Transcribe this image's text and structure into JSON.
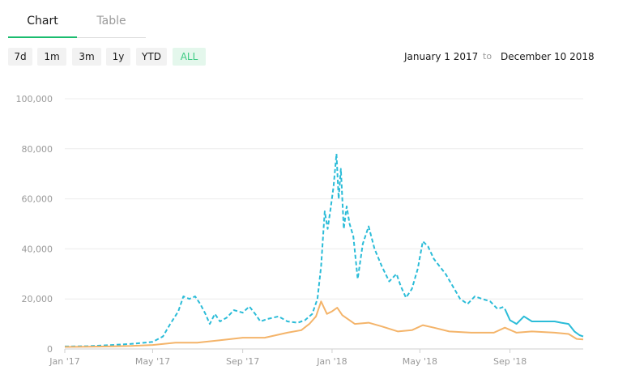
{
  "tabs": [
    {
      "label": "Chart"
    },
    {
      "label": "Table"
    }
  ],
  "range_buttons": [
    "7d",
    "1m",
    "3m",
    "1y",
    "YTD",
    "ALL"
  ],
  "active_range": "ALL",
  "date_range": {
    "start": "January 1 2017",
    "separator": "to",
    "end": "December 10 2018"
  },
  "colors": {
    "series_blue": "#2bbcd8",
    "series_orange": "#f4b46a",
    "tab_active": "#1abc6e",
    "active_button": "#3ecb84"
  },
  "chart_data": {
    "type": "line",
    "title": "",
    "xlabel": "",
    "ylabel": "",
    "ylim": [
      0,
      100000
    ],
    "xlim": [
      "2017-01-01",
      "2018-12-10"
    ],
    "grid": true,
    "yticks": [
      0,
      20000,
      40000,
      60000,
      80000,
      100000
    ],
    "ytick_labels": [
      "0",
      "20,000",
      "40,000",
      "60,000",
      "80,000",
      "100,000"
    ],
    "xticks": [
      {
        "date": "2017-01-01",
        "label": "Jan '17"
      },
      {
        "date": "2017-05-01",
        "label": "May '17"
      },
      {
        "date": "2017-09-01",
        "label": "Sep '17"
      },
      {
        "date": "2018-01-01",
        "label": "Jan '18"
      },
      {
        "date": "2018-05-01",
        "label": "May '18"
      },
      {
        "date": "2018-09-01",
        "label": "Sep '18"
      }
    ],
    "series": [
      {
        "style": "dashed",
        "points": [
          [
            "2017-01-01",
            1000
          ],
          [
            "2017-02-01",
            1100
          ],
          [
            "2017-03-01",
            1500
          ],
          [
            "2017-04-01",
            2000
          ],
          [
            "2017-05-01",
            2800
          ],
          [
            "2017-05-15",
            5000
          ],
          [
            "2017-05-25",
            10000
          ],
          [
            "2017-06-05",
            15000
          ],
          [
            "2017-06-12",
            21000
          ],
          [
            "2017-06-20",
            20000
          ],
          [
            "2017-06-28",
            21000
          ],
          [
            "2017-07-05",
            18000
          ],
          [
            "2017-07-12",
            14000
          ],
          [
            "2017-07-18",
            10000
          ],
          [
            "2017-07-25",
            14000
          ],
          [
            "2017-08-01",
            11000
          ],
          [
            "2017-08-10",
            12500
          ],
          [
            "2017-08-20",
            15500
          ],
          [
            "2017-09-01",
            14500
          ],
          [
            "2017-09-10",
            17000
          ],
          [
            "2017-09-18",
            14000
          ],
          [
            "2017-09-25",
            11000
          ],
          [
            "2017-10-05",
            12000
          ],
          [
            "2017-10-20",
            13000
          ],
          [
            "2017-11-01",
            11000
          ],
          [
            "2017-11-15",
            10500
          ],
          [
            "2017-11-25",
            11500
          ],
          [
            "2017-12-05",
            14000
          ],
          [
            "2017-12-12",
            20000
          ],
          [
            "2017-12-17",
            33000
          ],
          [
            "2017-12-22",
            55000
          ],
          [
            "2017-12-26",
            48000
          ],
          [
            "2017-12-30",
            56000
          ],
          [
            "2018-01-03",
            65000
          ],
          [
            "2018-01-07",
            78000
          ],
          [
            "2018-01-10",
            60000
          ],
          [
            "2018-01-13",
            72000
          ],
          [
            "2018-01-17",
            48000
          ],
          [
            "2018-01-21",
            57000
          ],
          [
            "2018-01-25",
            50000
          ],
          [
            "2018-01-30",
            45000
          ],
          [
            "2018-02-05",
            28000
          ],
          [
            "2018-02-12",
            42000
          ],
          [
            "2018-02-20",
            49000
          ],
          [
            "2018-02-28",
            40000
          ],
          [
            "2018-03-10",
            33000
          ],
          [
            "2018-03-20",
            27000
          ],
          [
            "2018-03-30",
            30000
          ],
          [
            "2018-04-05",
            25000
          ],
          [
            "2018-04-12",
            20500
          ],
          [
            "2018-04-20",
            24000
          ],
          [
            "2018-04-28",
            32000
          ],
          [
            "2018-05-05",
            43000
          ],
          [
            "2018-05-12",
            41000
          ],
          [
            "2018-05-20",
            36000
          ],
          [
            "2018-05-28",
            33000
          ],
          [
            "2018-06-05",
            30000
          ],
          [
            "2018-06-15",
            25000
          ],
          [
            "2018-06-25",
            20000
          ],
          [
            "2018-07-05",
            18000
          ],
          [
            "2018-07-15",
            21000
          ],
          [
            "2018-07-25",
            20000
          ],
          [
            "2018-08-05",
            19000
          ],
          [
            "2018-08-15",
            16000
          ],
          [
            "2018-08-25",
            17000
          ]
        ]
      },
      {
        "style": "solid",
        "points": [
          [
            "2018-08-25",
            16000
          ],
          [
            "2018-09-01",
            11500
          ],
          [
            "2018-09-10",
            10000
          ],
          [
            "2018-09-20",
            13000
          ],
          [
            "2018-10-01",
            11000
          ],
          [
            "2018-10-15",
            11000
          ],
          [
            "2018-11-01",
            11000
          ],
          [
            "2018-11-10",
            10500
          ],
          [
            "2018-11-20",
            10000
          ],
          [
            "2018-11-28",
            7000
          ],
          [
            "2018-12-05",
            5500
          ],
          [
            "2018-12-10",
            5000
          ]
        ]
      },
      {
        "style": "solid",
        "points": [
          [
            "2017-01-01",
            800
          ],
          [
            "2017-02-01",
            900
          ],
          [
            "2017-03-01",
            1000
          ],
          [
            "2017-04-01",
            1200
          ],
          [
            "2017-05-01",
            1600
          ],
          [
            "2017-06-01",
            2500
          ],
          [
            "2017-07-01",
            2500
          ],
          [
            "2017-08-01",
            3500
          ],
          [
            "2017-09-01",
            4500
          ],
          [
            "2017-10-01",
            4500
          ],
          [
            "2017-11-01",
            6500
          ],
          [
            "2017-11-20",
            7500
          ],
          [
            "2017-12-01",
            10000
          ],
          [
            "2017-12-10",
            13000
          ],
          [
            "2017-12-17",
            19000
          ],
          [
            "2017-12-25",
            14000
          ],
          [
            "2018-01-01",
            15000
          ],
          [
            "2018-01-08",
            16500
          ],
          [
            "2018-01-15",
            13500
          ],
          [
            "2018-02-01",
            10000
          ],
          [
            "2018-02-20",
            10500
          ],
          [
            "2018-03-10",
            9000
          ],
          [
            "2018-04-01",
            7000
          ],
          [
            "2018-04-20",
            7500
          ],
          [
            "2018-05-05",
            9500
          ],
          [
            "2018-05-20",
            8500
          ],
          [
            "2018-06-10",
            7000
          ],
          [
            "2018-07-10",
            6500
          ],
          [
            "2018-08-10",
            6500
          ],
          [
            "2018-08-25",
            8500
          ],
          [
            "2018-09-10",
            6500
          ],
          [
            "2018-10-01",
            7000
          ],
          [
            "2018-11-01",
            6500
          ],
          [
            "2018-11-20",
            6000
          ],
          [
            "2018-12-01",
            4000
          ],
          [
            "2018-12-10",
            3800
          ]
        ]
      }
    ]
  }
}
